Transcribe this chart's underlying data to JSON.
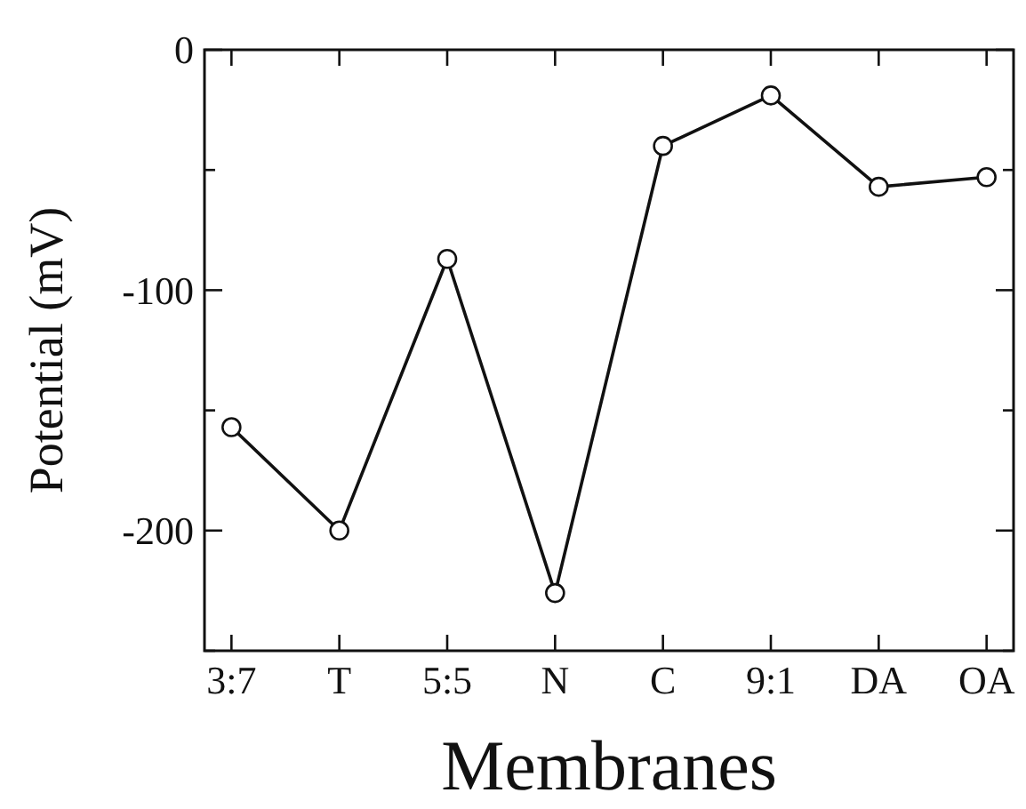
{
  "chart_data": {
    "type": "line",
    "xlabel": "Membranes",
    "ylabel": "Potential (mV)",
    "categories": [
      "3:7",
      "T",
      "5:5",
      "N",
      "C",
      "9:1",
      "DA",
      "OA"
    ],
    "values": [
      -157,
      -200,
      -87,
      -226,
      -40,
      -19,
      -57,
      -53
    ],
    "color": "#111111",
    "marker": "circle",
    "line_style": "solid",
    "ylim": [
      -250,
      0
    ],
    "yticks": [
      0,
      {
        "value": -50,
        "label": null
      },
      -100,
      {
        "value": -150,
        "label": null
      },
      -200,
      {
        "value": -250,
        "label": null
      }
    ],
    "grid": false
  }
}
